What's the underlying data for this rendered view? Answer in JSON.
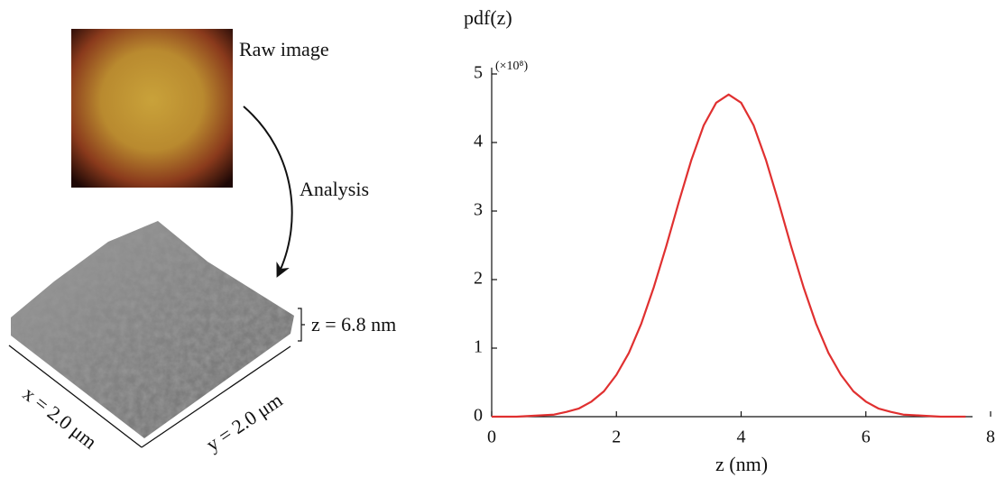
{
  "diagram": {
    "raw_image_label": "Raw image",
    "analysis_label": "Analysis",
    "x_size": "x = 2.0 μm",
    "y_size": "y = 2.0 μm",
    "z_range": "z = 6.8 nm"
  },
  "chart_data": {
    "type": "line",
    "title": "pdf(z)",
    "y_multiplier": "(×10⁸)",
    "x_label": "z (nm)",
    "x": [
      0,
      0.2,
      0.4,
      0.6,
      0.8,
      1.0,
      1.2,
      1.4,
      1.6,
      1.8,
      2.0,
      2.2,
      2.4,
      2.6,
      2.8,
      3.0,
      3.2,
      3.4,
      3.6,
      3.8,
      4.0,
      4.2,
      4.4,
      4.6,
      4.8,
      5.0,
      5.2,
      5.4,
      5.6,
      5.8,
      6.0,
      6.2,
      6.4,
      6.6,
      6.8,
      7.0,
      7.2,
      7.4,
      7.6
    ],
    "series": [
      {
        "name": "pdf",
        "color": "#e03030",
        "values": [
          0,
          0,
          0,
          0.01,
          0.02,
          0.03,
          0.07,
          0.12,
          0.22,
          0.37,
          0.61,
          0.93,
          1.36,
          1.89,
          2.49,
          3.13,
          3.74,
          4.25,
          4.58,
          4.7,
          4.58,
          4.25,
          3.74,
          3.13,
          2.49,
          1.89,
          1.36,
          0.93,
          0.61,
          0.37,
          0.22,
          0.12,
          0.07,
          0.03,
          0.02,
          0.01,
          0,
          0,
          0
        ]
      }
    ],
    "xlim": [
      0,
      8
    ],
    "xticks": [
      0,
      2,
      4,
      6,
      8
    ],
    "ylim": [
      0,
      5
    ],
    "yticks": [
      0,
      1,
      2,
      3,
      4,
      5
    ],
    "grid": false
  }
}
